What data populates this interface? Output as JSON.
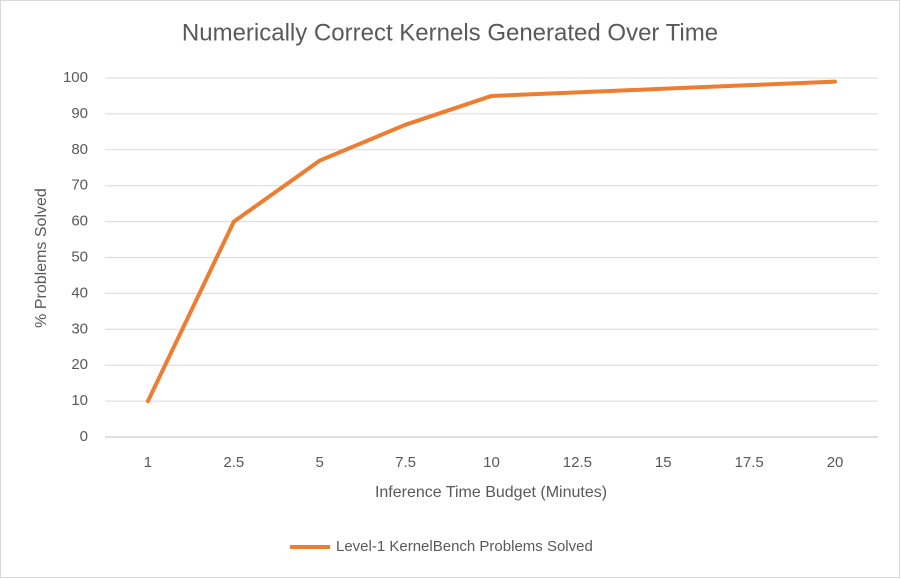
{
  "chart_data": {
    "type": "line",
    "title": "Numerically Correct Kernels Generated Over Time",
    "x_label": "Inference Time Budget (Minutes)",
    "y_label": "% Problems Solved",
    "categories": [
      "1",
      "2.5",
      "5",
      "7.5",
      "10",
      "12.5",
      "15",
      "17.5",
      "20"
    ],
    "series": [
      {
        "name": "Level-1 KernelBench Problems Solved",
        "color": "#ed7d31",
        "values": [
          10,
          60,
          77,
          87,
          95,
          96,
          97,
          98,
          99
        ]
      }
    ],
    "ylim": [
      0,
      100
    ],
    "yticks": [
      0,
      10,
      20,
      30,
      40,
      50,
      60,
      70,
      80,
      90,
      100
    ],
    "grid": true,
    "legend": "bottom"
  }
}
